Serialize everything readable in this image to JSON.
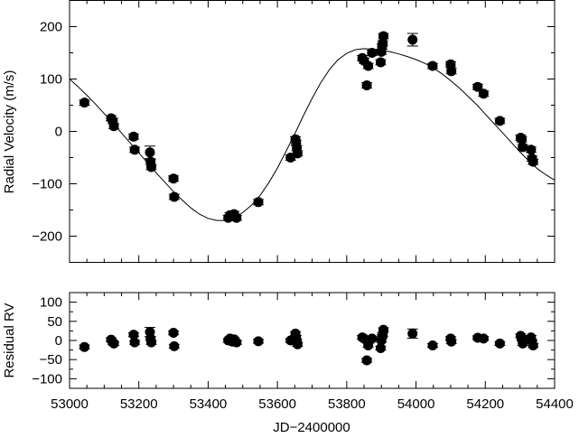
{
  "chart_data": [
    {
      "type": "scatter",
      "panel": "top",
      "title": "",
      "xlabel": "",
      "ylabel": "Radial Velocity (m/s)",
      "xlim": [
        53000,
        54400
      ],
      "ylim": [
        -250,
        250
      ],
      "yticks": [
        -200,
        -100,
        0,
        100,
        200
      ],
      "xticks": [
        53000,
        53200,
        53400,
        53600,
        53800,
        54000,
        54200,
        54400
      ],
      "grid": false,
      "model_curve": {
        "type": "keplerian-fit",
        "x_samples": [
          53000,
          53025,
          53050,
          53075,
          53100,
          53125,
          53150,
          53175,
          53200,
          53225,
          53250,
          53275,
          53300,
          53325,
          53350,
          53375,
          53400,
          53425,
          53450,
          53475,
          53500,
          53525,
          53550,
          53575,
          53600,
          53625,
          53650,
          53675,
          53700,
          53725,
          53750,
          53775,
          53800,
          53825,
          53850,
          53875,
          53900,
          53925,
          53950,
          53975,
          54000,
          54025,
          54050,
          54075,
          54100,
          54125,
          54150,
          54175,
          54200,
          54225,
          54250,
          54275,
          54300,
          54325,
          54350,
          54375,
          54400
        ],
        "y_samples": [
          100,
          85,
          69,
          52,
          34,
          16,
          -3,
          -22,
          -41,
          -60,
          -79,
          -97,
          -115,
          -131,
          -146,
          -158,
          -166,
          -170,
          -170,
          -165,
          -155,
          -141,
          -122,
          -98,
          -70,
          -38,
          -5,
          30,
          63,
          93,
          118,
          137,
          149,
          156,
          158,
          157,
          155,
          152,
          148,
          143,
          137,
          130,
          121,
          110,
          97,
          83,
          67,
          51,
          33,
          15,
          -3,
          -21,
          -39,
          -56,
          -71,
          -83,
          -93
        ]
      },
      "points": [
        {
          "x": 53043,
          "y": 55,
          "err": 5
        },
        {
          "x": 53120,
          "y": 25,
          "err": 5
        },
        {
          "x": 53125,
          "y": 20,
          "err": 5
        },
        {
          "x": 53128,
          "y": 10,
          "err": 5
        },
        {
          "x": 53185,
          "y": -10,
          "err": 5
        },
        {
          "x": 53188,
          "y": -35,
          "err": 5
        },
        {
          "x": 53232,
          "y": -40,
          "err": 12
        },
        {
          "x": 53234,
          "y": -58,
          "err": 5
        },
        {
          "x": 53236,
          "y": -68,
          "err": 5
        },
        {
          "x": 53300,
          "y": -90,
          "err": 5
        },
        {
          "x": 53302,
          "y": -125,
          "err": 5
        },
        {
          "x": 53458,
          "y": -165,
          "err": 5
        },
        {
          "x": 53463,
          "y": -160,
          "err": 5
        },
        {
          "x": 53470,
          "y": -162,
          "err": 5
        },
        {
          "x": 53475,
          "y": -158,
          "err": 5
        },
        {
          "x": 53482,
          "y": -165,
          "err": 5
        },
        {
          "x": 53545,
          "y": -135,
          "err": 5
        },
        {
          "x": 53638,
          "y": -50,
          "err": 5
        },
        {
          "x": 53652,
          "y": -15,
          "err": 5
        },
        {
          "x": 53654,
          "y": -22,
          "err": 5
        },
        {
          "x": 53656,
          "y": -32,
          "err": 5
        },
        {
          "x": 53658,
          "y": -42,
          "err": 5
        },
        {
          "x": 53845,
          "y": 140,
          "err": 5
        },
        {
          "x": 53850,
          "y": 135,
          "err": 5
        },
        {
          "x": 53858,
          "y": 88,
          "err": 5
        },
        {
          "x": 53862,
          "y": 125,
          "err": 5
        },
        {
          "x": 53873,
          "y": 150,
          "err": 5
        },
        {
          "x": 53898,
          "y": 132,
          "err": 5
        },
        {
          "x": 53900,
          "y": 152,
          "err": 5
        },
        {
          "x": 53902,
          "y": 162,
          "err": 5
        },
        {
          "x": 53904,
          "y": 168,
          "err": 5
        },
        {
          "x": 53906,
          "y": 182,
          "err": 5
        },
        {
          "x": 53990,
          "y": 175,
          "err": 12
        },
        {
          "x": 54048,
          "y": 125,
          "err": 5
        },
        {
          "x": 54100,
          "y": 128,
          "err": 5
        },
        {
          "x": 54102,
          "y": 115,
          "err": 5
        },
        {
          "x": 54178,
          "y": 85,
          "err": 5
        },
        {
          "x": 54195,
          "y": 72,
          "err": 5
        },
        {
          "x": 54242,
          "y": 20,
          "err": 5
        },
        {
          "x": 54302,
          "y": -12,
          "err": 5
        },
        {
          "x": 54305,
          "y": -15,
          "err": 5
        },
        {
          "x": 54308,
          "y": -30,
          "err": 5
        },
        {
          "x": 54332,
          "y": -35,
          "err": 5
        },
        {
          "x": 54335,
          "y": -52,
          "err": 5
        },
        {
          "x": 54338,
          "y": -58,
          "err": 5
        }
      ]
    },
    {
      "type": "scatter",
      "panel": "bottom",
      "title": "",
      "xlabel": "JD−2400000",
      "ylabel": "Residual RV",
      "xlim": [
        53000,
        54400
      ],
      "ylim": [
        -125,
        125
      ],
      "yticks": [
        -100,
        -50,
        0,
        50,
        100
      ],
      "xticks": [
        53000,
        53200,
        53400,
        53600,
        53800,
        54000,
        54200,
        54400
      ],
      "grid": false,
      "points": [
        {
          "x": 53043,
          "y": -17,
          "err": 5
        },
        {
          "x": 53120,
          "y": 2,
          "err": 5
        },
        {
          "x": 53125,
          "y": -5,
          "err": 5
        },
        {
          "x": 53128,
          "y": -8,
          "err": 5
        },
        {
          "x": 53185,
          "y": 15,
          "err": 5
        },
        {
          "x": 53188,
          "y": -5,
          "err": 5
        },
        {
          "x": 53232,
          "y": 22,
          "err": 12
        },
        {
          "x": 53234,
          "y": 5,
          "err": 5
        },
        {
          "x": 53236,
          "y": -5,
          "err": 5
        },
        {
          "x": 53300,
          "y": 20,
          "err": 5
        },
        {
          "x": 53302,
          "y": -15,
          "err": 5
        },
        {
          "x": 53458,
          "y": 0,
          "err": 5
        },
        {
          "x": 53463,
          "y": 5,
          "err": 5
        },
        {
          "x": 53470,
          "y": -3,
          "err": 5
        },
        {
          "x": 53475,
          "y": 3,
          "err": 5
        },
        {
          "x": 53482,
          "y": -5,
          "err": 5
        },
        {
          "x": 53545,
          "y": -2,
          "err": 5
        },
        {
          "x": 53638,
          "y": 0,
          "err": 5
        },
        {
          "x": 53652,
          "y": 18,
          "err": 5
        },
        {
          "x": 53654,
          "y": 8,
          "err": 5
        },
        {
          "x": 53656,
          "y": -2,
          "err": 5
        },
        {
          "x": 53658,
          "y": -10,
          "err": 5
        },
        {
          "x": 53845,
          "y": 8,
          "err": 5
        },
        {
          "x": 53850,
          "y": 5,
          "err": 5
        },
        {
          "x": 53858,
          "y": -52,
          "err": 5
        },
        {
          "x": 53862,
          "y": -13,
          "err": 5
        },
        {
          "x": 53873,
          "y": 5,
          "err": 5
        },
        {
          "x": 53898,
          "y": -20,
          "err": 5
        },
        {
          "x": 53900,
          "y": 0,
          "err": 5
        },
        {
          "x": 53902,
          "y": 10,
          "err": 5
        },
        {
          "x": 53904,
          "y": 15,
          "err": 5
        },
        {
          "x": 53906,
          "y": 28,
          "err": 5
        },
        {
          "x": 53990,
          "y": 18,
          "err": 12
        },
        {
          "x": 54048,
          "y": -13,
          "err": 5
        },
        {
          "x": 54100,
          "y": 5,
          "err": 5
        },
        {
          "x": 54102,
          "y": -3,
          "err": 5
        },
        {
          "x": 54178,
          "y": 7,
          "err": 5
        },
        {
          "x": 54195,
          "y": 5,
          "err": 5
        },
        {
          "x": 54242,
          "y": -8,
          "err": 5
        },
        {
          "x": 54302,
          "y": 12,
          "err": 5
        },
        {
          "x": 54305,
          "y": 5,
          "err": 5
        },
        {
          "x": 54308,
          "y": -8,
          "err": 5
        },
        {
          "x": 54332,
          "y": 8,
          "err": 5
        },
        {
          "x": 54335,
          "y": -3,
          "err": 5
        },
        {
          "x": 54338,
          "y": -13,
          "err": 5
        }
      ]
    }
  ]
}
